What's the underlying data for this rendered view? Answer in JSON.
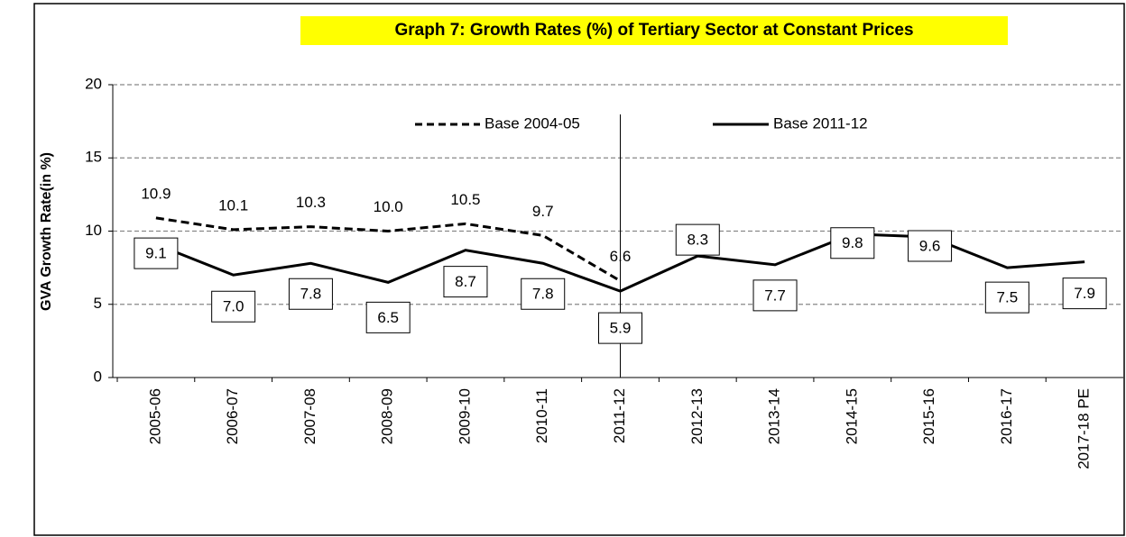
{
  "chart_data": {
    "type": "line",
    "title": "Graph 7: Growth Rates (%) of Tertiary Sector at Constant Prices",
    "y_label": "GVA Growth Rate(in %)",
    "categories": [
      "2005-06",
      "2006-07",
      "2007-08",
      "2008-09",
      "2009-10",
      "2010-11",
      "2011-12",
      "2012-13",
      "2013-14",
      "2014-15",
      "2015-16",
      "2016-17",
      "2017-18 PE"
    ],
    "series": [
      {
        "name": "Base 2004-05",
        "color": "#000000",
        "dash": true,
        "values": [
          10.9,
          10.1,
          10.3,
          10,
          10.5,
          9.7,
          6.6,
          null,
          null,
          null,
          null,
          null,
          null
        ],
        "value_labels": [
          "10.9",
          "10.1",
          "10.3",
          "10.0",
          "10.5",
          "9.7",
          "6.6",
          null,
          null,
          null,
          null,
          null,
          null
        ]
      },
      {
        "name": "Base 2011-12",
        "color": "#000000",
        "dash": false,
        "values": [
          9.1,
          7,
          7.8,
          6.5,
          8.7,
          7.8,
          5.9,
          8.3,
          7.7,
          9.8,
          9.6,
          7.5,
          7.9
        ],
        "value_labels": [
          "9.1",
          "7.0",
          "7.8",
          "6.5",
          "8.7",
          "7.8",
          "5.9",
          "8.3",
          "7.7",
          "9.8",
          "9.6",
          "7.5",
          "7.9"
        ]
      }
    ],
    "ylim": [
      0,
      20
    ],
    "yticks": [
      0,
      5,
      10,
      15,
      20
    ],
    "grid": true
  }
}
